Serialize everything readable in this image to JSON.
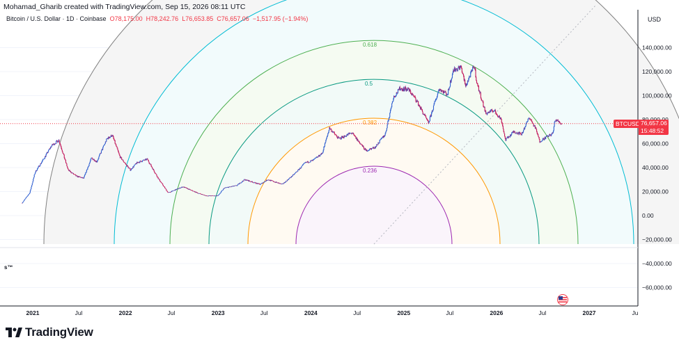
{
  "header": {
    "credit": "Mohamad_Gharib created with TradingView.com, Sep 15, 2026 08:11 UTC",
    "symbol_desc": "Bitcoin / U.S. Dollar · 1D · Coinbase",
    "open": "O78,175.00",
    "high": "H78,242.76",
    "low": "L76,653.85",
    "close": "C76,657.06",
    "change": "−1,517.95 (−1.94%)"
  },
  "axis": {
    "currency": "USD",
    "y_ticks": [
      "140,000.00",
      "120,000.00",
      "100,000.00",
      "80,000.00",
      "60,000.00",
      "40,000.00",
      "20,000.00",
      "0.00",
      "−20,000.00",
      "−40,000.00",
      "−60,000.00"
    ],
    "x_ticks": [
      "2021",
      "Jul",
      "2022",
      "Jul",
      "2023",
      "Jul",
      "2024",
      "Jul",
      "2025",
      "Jul",
      "2026",
      "Jul",
      "2027",
      "Ju"
    ]
  },
  "price_label": {
    "symbol": "BTCUSD",
    "value": "76,657.06",
    "countdown": "15:48:52"
  },
  "sub_pane_label": "s™",
  "brand": "TradingView",
  "colors": {
    "up": "#2f5fd0",
    "down": "#c2185b",
    "last_price": "#f23645",
    "fib_0236": "#9c27b0",
    "fib_0382": "#ff9800",
    "fib_05": "#089981",
    "fib_0618": "#4caf50",
    "fib_0786": "#00bcd4",
    "fib_1": "#808080"
  },
  "chart_data": {
    "type": "candlestick",
    "symbol": "BTCUSD",
    "y_range": [
      -70000,
      150000
    ],
    "x_range": [
      "2020-11-20",
      "2027-07-10"
    ],
    "last_price": 76657.06,
    "price_path": [
      [
        "2020-11-20",
        10500
      ],
      [
        "2020-12-20",
        19000
      ],
      [
        "2021-01-10",
        36000
      ],
      [
        "2021-02-15",
        48000
      ],
      [
        "2021-03-15",
        58000
      ],
      [
        "2021-04-14",
        63000
      ],
      [
        "2021-05-20",
        38000
      ],
      [
        "2021-06-20",
        33000
      ],
      [
        "2021-07-20",
        31000
      ],
      [
        "2021-08-20",
        48000
      ],
      [
        "2021-09-10",
        45000
      ],
      [
        "2021-10-20",
        64000
      ],
      [
        "2021-11-10",
        67000
      ],
      [
        "2021-12-10",
        49000
      ],
      [
        "2022-01-20",
        38000
      ],
      [
        "2022-02-15",
        44000
      ],
      [
        "2022-03-28",
        47000
      ],
      [
        "2022-05-10",
        31000
      ],
      [
        "2022-06-18",
        19000
      ],
      [
        "2022-08-15",
        24000
      ],
      [
        "2022-10-10",
        19000
      ],
      [
        "2022-11-15",
        16500
      ],
      [
        "2022-12-31",
        16500
      ],
      [
        "2023-01-25",
        23000
      ],
      [
        "2023-03-15",
        25000
      ],
      [
        "2023-04-15",
        30000
      ],
      [
        "2023-06-15",
        26000
      ],
      [
        "2023-07-15",
        30000
      ],
      [
        "2023-09-10",
        26000
      ],
      [
        "2023-10-25",
        34000
      ],
      [
        "2023-12-10",
        44000
      ],
      [
        "2024-01-10",
        46000
      ],
      [
        "2024-02-15",
        52000
      ],
      [
        "2024-03-14",
        73000
      ],
      [
        "2024-04-20",
        64000
      ],
      [
        "2024-06-10",
        69000
      ],
      [
        "2024-08-05",
        54000
      ],
      [
        "2024-09-10",
        57000
      ],
      [
        "2024-10-20",
        68000
      ],
      [
        "2024-11-20",
        98000
      ],
      [
        "2024-12-17",
        106000
      ],
      [
        "2025-01-20",
        105000
      ],
      [
        "2025-02-20",
        96000
      ],
      [
        "2025-04-08",
        77000
      ],
      [
        "2025-05-20",
        106000
      ],
      [
        "2025-06-22",
        101000
      ],
      [
        "2025-07-14",
        121000
      ],
      [
        "2025-08-14",
        124000
      ],
      [
        "2025-09-01",
        108000
      ],
      [
        "2025-10-06",
        125000
      ],
      [
        "2025-10-15",
        111000
      ],
      [
        "2025-11-20",
        85000
      ],
      [
        "2025-12-20",
        88000
      ],
      [
        "2026-01-20",
        80000
      ],
      [
        "2026-02-05",
        63000
      ],
      [
        "2026-03-10",
        70000
      ],
      [
        "2026-04-10",
        68000
      ],
      [
        "2026-05-10",
        82000
      ],
      [
        "2026-06-05",
        72000
      ],
      [
        "2026-06-20",
        62000
      ],
      [
        "2026-07-20",
        66000
      ],
      [
        "2026-08-10",
        68000
      ],
      [
        "2026-08-20",
        80000
      ],
      [
        "2026-09-15",
        76657
      ]
    ],
    "fib_speed_arcs": {
      "center": [
        "2025-09-15",
        -25000
      ],
      "levels": [
        0.236,
        0.382,
        0.5,
        0.618,
        0.786,
        1
      ],
      "labels": [
        "0.236",
        "0.382",
        "0.5",
        "0.618"
      ]
    }
  }
}
